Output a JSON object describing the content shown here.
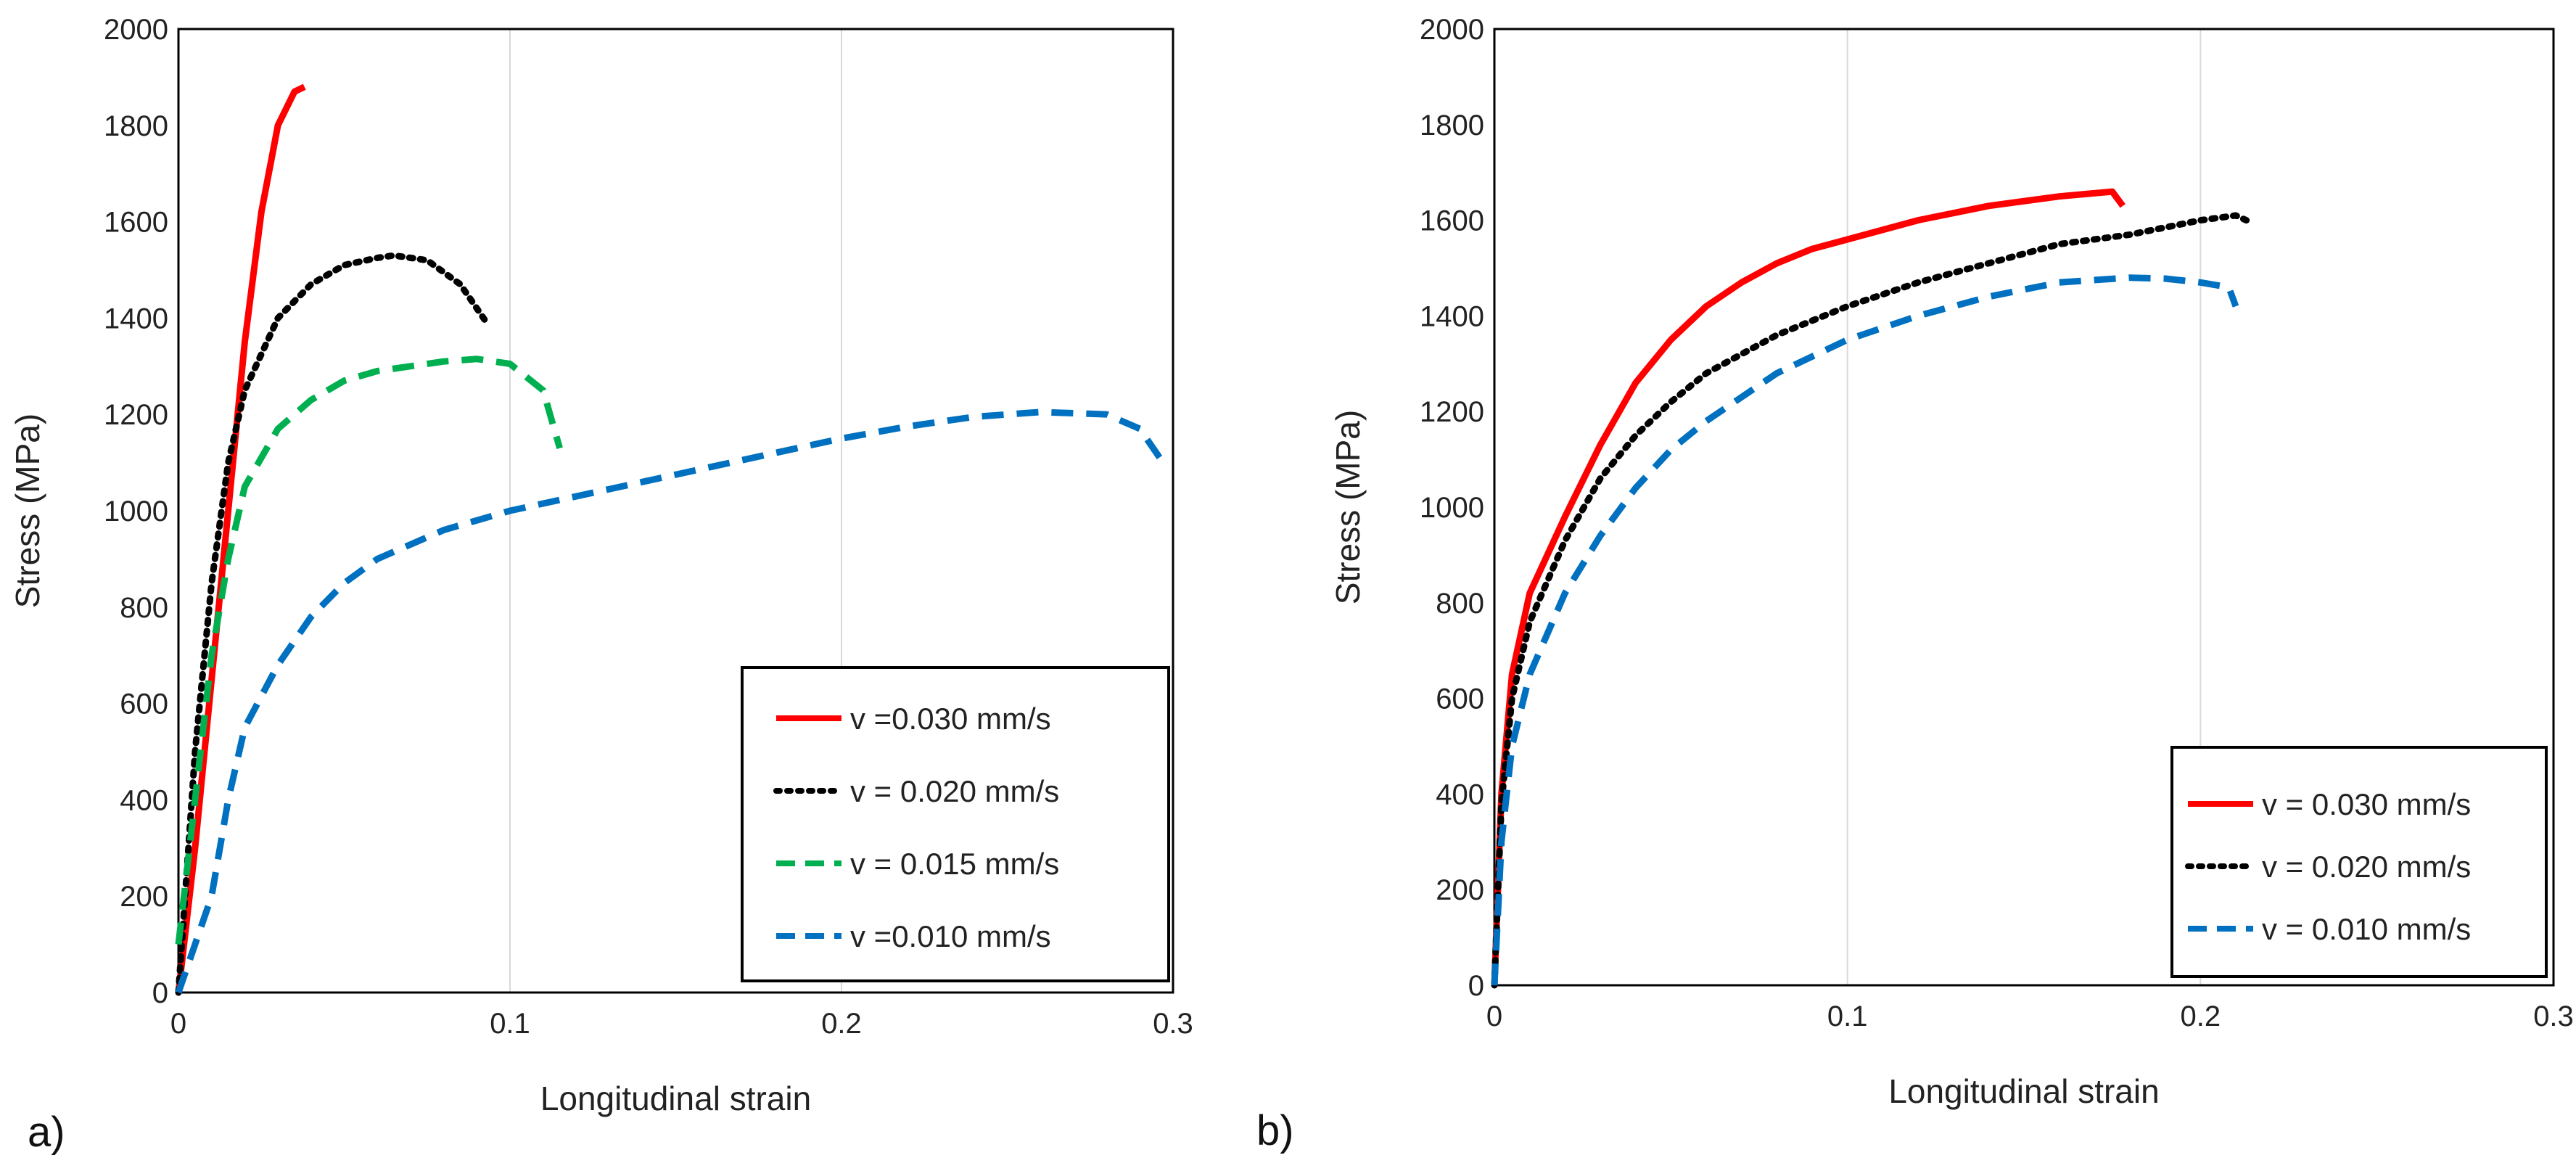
{
  "chart_data": [
    {
      "type": "line",
      "panel_label": "a)",
      "xlabel": "Longitudinal strain",
      "ylabel": "Stress (MPa)",
      "xlim": [
        0,
        0.3
      ],
      "ylim": [
        0,
        2000
      ],
      "x_ticks": [
        "0",
        "0.1",
        "0.2",
        "0.3"
      ],
      "y_ticks": [
        "0",
        "200",
        "400",
        "600",
        "800",
        "1000",
        "1200",
        "1400",
        "1600",
        "1800",
        "2000"
      ],
      "grid": "vertical",
      "legend_position": "bottom-right",
      "series": [
        {
          "name": "v =0.030 mm/s",
          "color": "#ff0000",
          "style": "solid",
          "x": [
            0,
            0.005,
            0.01,
            0.015,
            0.02,
            0.025,
            0.03,
            0.035,
            0.038
          ],
          "y": [
            0,
            300,
            650,
            1000,
            1350,
            1620,
            1800,
            1870,
            1880
          ]
        },
        {
          "name": "v = 0.020 mm/s",
          "color": "#000000",
          "style": "dotted",
          "x": [
            0,
            0.005,
            0.01,
            0.015,
            0.02,
            0.03,
            0.04,
            0.05,
            0.06,
            0.065,
            0.075,
            0.085,
            0.093
          ],
          "y": [
            0,
            500,
            850,
            1100,
            1250,
            1400,
            1470,
            1510,
            1525,
            1530,
            1520,
            1470,
            1390
          ]
        },
        {
          "name": "v = 0.015 mm/s",
          "color": "#00b050",
          "style": "dashed",
          "x": [
            0,
            0.005,
            0.01,
            0.015,
            0.02,
            0.03,
            0.04,
            0.05,
            0.06,
            0.07,
            0.08,
            0.09,
            0.1,
            0.11,
            0.115
          ],
          "y": [
            100,
            400,
            700,
            900,
            1050,
            1170,
            1230,
            1270,
            1290,
            1300,
            1310,
            1315,
            1305,
            1250,
            1130
          ]
        },
        {
          "name": "v =0.010 mm/s",
          "color": "#0070c0",
          "style": "dashed",
          "x": [
            0,
            0.005,
            0.01,
            0.015,
            0.02,
            0.03,
            0.04,
            0.05,
            0.06,
            0.07,
            0.08,
            0.1,
            0.12,
            0.14,
            0.16,
            0.18,
            0.2,
            0.22,
            0.24,
            0.26,
            0.28,
            0.29,
            0.297
          ],
          "y": [
            0,
            100,
            200,
            400,
            550,
            680,
            780,
            850,
            900,
            930,
            960,
            1000,
            1030,
            1060,
            1090,
            1120,
            1150,
            1175,
            1195,
            1205,
            1200,
            1170,
            1100
          ]
        }
      ]
    },
    {
      "type": "line",
      "panel_label": "b)",
      "xlabel": "Longitudinal strain",
      "ylabel": "Stress (MPa)",
      "xlim": [
        0,
        0.3
      ],
      "ylim": [
        0,
        2000
      ],
      "x_ticks": [
        "0",
        "0.1",
        "0.2",
        "0.3"
      ],
      "y_ticks": [
        "0",
        "200",
        "400",
        "600",
        "800",
        "1000",
        "1200",
        "1400",
        "1600",
        "1800",
        "2000"
      ],
      "grid": "vertical",
      "legend_position": "bottom-right",
      "series": [
        {
          "name": "v = 0.030 mm/s",
          "color": "#ff0000",
          "style": "solid",
          "x": [
            0,
            0.002,
            0.005,
            0.01,
            0.02,
            0.03,
            0.04,
            0.05,
            0.06,
            0.07,
            0.08,
            0.09,
            0.1,
            0.12,
            0.14,
            0.16,
            0.175,
            0.178
          ],
          "y": [
            0,
            400,
            650,
            820,
            980,
            1130,
            1260,
            1350,
            1420,
            1470,
            1510,
            1540,
            1560,
            1600,
            1630,
            1650,
            1660,
            1630
          ]
        },
        {
          "name": "v = 0.020 mm/s",
          "color": "#000000",
          "style": "dotted",
          "x": [
            0,
            0.002,
            0.005,
            0.01,
            0.02,
            0.03,
            0.04,
            0.05,
            0.06,
            0.08,
            0.1,
            0.12,
            0.14,
            0.16,
            0.18,
            0.2,
            0.21,
            0.213
          ],
          "y": [
            0,
            380,
            600,
            760,
            930,
            1060,
            1150,
            1220,
            1280,
            1360,
            1420,
            1470,
            1510,
            1550,
            1570,
            1600,
            1610,
            1600
          ]
        },
        {
          "name": "v = 0.010 mm/s",
          "color": "#0070c0",
          "style": "dashed",
          "x": [
            0,
            0.002,
            0.005,
            0.01,
            0.02,
            0.03,
            0.04,
            0.05,
            0.06,
            0.08,
            0.1,
            0.12,
            0.14,
            0.16,
            0.18,
            0.19,
            0.2,
            0.208,
            0.21
          ],
          "y": [
            0,
            300,
            500,
            650,
            820,
            940,
            1040,
            1120,
            1180,
            1280,
            1350,
            1400,
            1440,
            1470,
            1480,
            1478,
            1470,
            1460,
            1420
          ]
        }
      ]
    }
  ]
}
